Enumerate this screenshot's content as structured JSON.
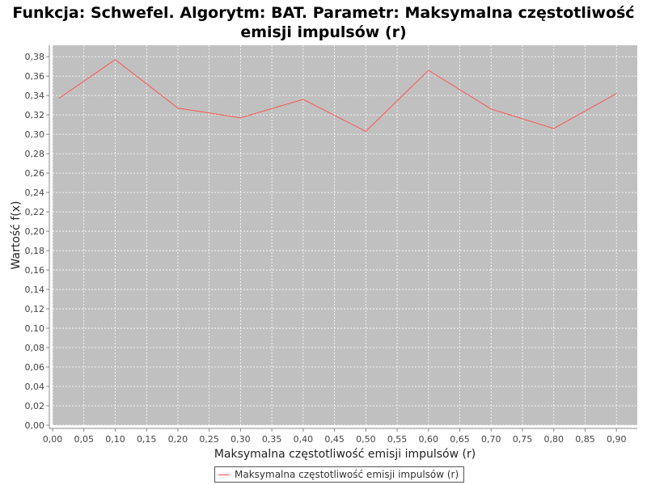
{
  "chart_data": {
    "type": "line",
    "title": "Funkcja: Schwefel. Algorytm: BAT. Parametr: Maksymalna częstotliwość emisji impulsów (r)",
    "xlabel": "Maksymalna częstotliwość emisji impulsów (r)",
    "ylabel": "Wartość f(x)",
    "xlim": [
      0.0,
      0.9333
    ],
    "ylim": [
      0.0,
      0.3918
    ],
    "x_ticks": [
      "0,00",
      "0,05",
      "0,10",
      "0,15",
      "0,20",
      "0,25",
      "0,30",
      "0,35",
      "0,40",
      "0,45",
      "0,50",
      "0,55",
      "0,60",
      "0,65",
      "0,70",
      "0,75",
      "0,80",
      "0,85",
      "0,90"
    ],
    "y_ticks": [
      "0,00",
      "0,02",
      "0,04",
      "0,06",
      "0,08",
      "0,10",
      "0,12",
      "0,14",
      "0,16",
      "0,18",
      "0,20",
      "0,22",
      "0,24",
      "0,26",
      "0,28",
      "0,30",
      "0,32",
      "0,34",
      "0,36",
      "0,38"
    ],
    "grid": true,
    "legend_position": "bottom",
    "series": [
      {
        "name": "Maksymalna częstotliwość emisji impulsów (r)",
        "color": "#ff5555",
        "x": [
          0.01,
          0.1,
          0.2,
          0.3,
          0.4,
          0.5,
          0.6,
          0.7,
          0.8,
          0.9
        ],
        "y": [
          0.337,
          0.377,
          0.327,
          0.317,
          0.336,
          0.303,
          0.366,
          0.326,
          0.306,
          0.342
        ]
      }
    ],
    "plot_background": "#c0c0c0",
    "grid_color": "#ffffff"
  }
}
